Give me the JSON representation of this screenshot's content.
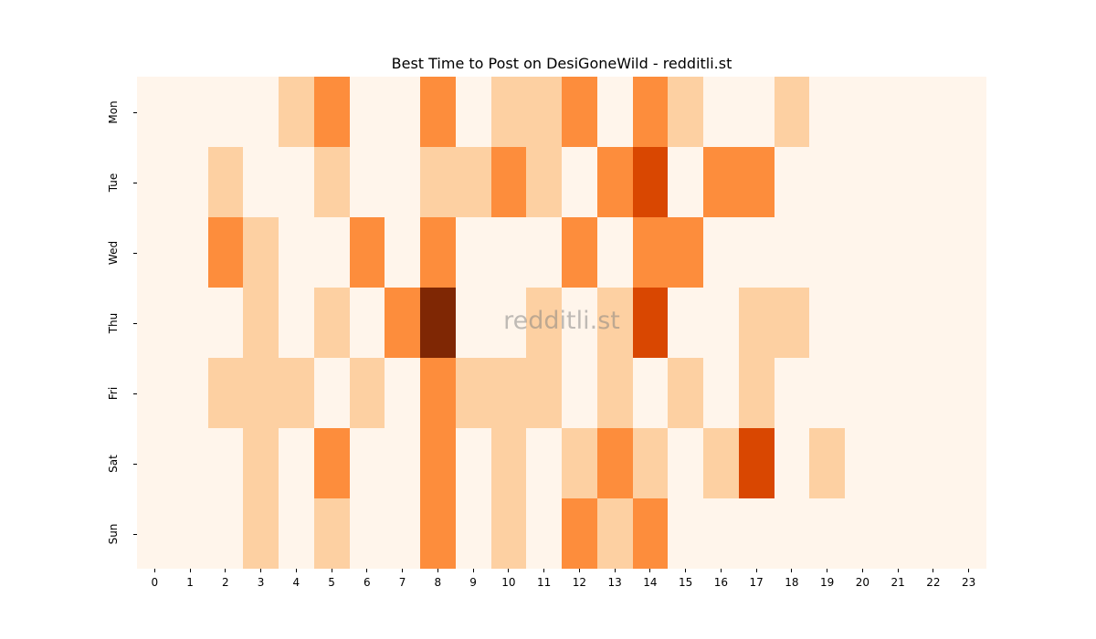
{
  "chart_data": {
    "type": "heatmap",
    "title": "Best Time to Post on DesiGoneWild - redditli.st",
    "xlabel": "",
    "ylabel": "",
    "x_categories": [
      "0",
      "1",
      "2",
      "3",
      "4",
      "5",
      "6",
      "7",
      "8",
      "9",
      "10",
      "11",
      "12",
      "13",
      "14",
      "15",
      "16",
      "17",
      "18",
      "19",
      "20",
      "21",
      "22",
      "23"
    ],
    "y_categories": [
      "Mon",
      "Tue",
      "Wed",
      "Thu",
      "Fri",
      "Sat",
      "Sun"
    ],
    "colormap": "Oranges",
    "colorbar": false,
    "grid": false,
    "level_colors": [
      "#fff5eb",
      "#fdd0a2",
      "#fd8d3c",
      "#d94701",
      "#7f2704"
    ],
    "values": [
      [
        0,
        0,
        0,
        0,
        1,
        2,
        0,
        0,
        2,
        0,
        1,
        1,
        2,
        0,
        2,
        1,
        0,
        0,
        1,
        0,
        0,
        0,
        0,
        0
      ],
      [
        0,
        0,
        1,
        0,
        0,
        1,
        0,
        0,
        1,
        1,
        2,
        1,
        0,
        2,
        3,
        0,
        2,
        2,
        0,
        0,
        0,
        0,
        0,
        0
      ],
      [
        0,
        0,
        2,
        1,
        0,
        0,
        2,
        0,
        2,
        0,
        0,
        0,
        2,
        0,
        2,
        2,
        0,
        0,
        0,
        0,
        0,
        0,
        0,
        0
      ],
      [
        0,
        0,
        0,
        1,
        0,
        1,
        0,
        2,
        4,
        0,
        0,
        1,
        0,
        1,
        3,
        0,
        0,
        1,
        1,
        0,
        0,
        0,
        0,
        0
      ],
      [
        0,
        0,
        1,
        1,
        1,
        0,
        1,
        0,
        2,
        1,
        1,
        1,
        0,
        1,
        0,
        1,
        0,
        1,
        0,
        0,
        0,
        0,
        0,
        0
      ],
      [
        0,
        0,
        0,
        1,
        0,
        2,
        0,
        0,
        2,
        0,
        1,
        0,
        1,
        2,
        1,
        0,
        1,
        3,
        0,
        1,
        0,
        0,
        0,
        0
      ],
      [
        0,
        0,
        0,
        1,
        0,
        1,
        0,
        0,
        2,
        0,
        1,
        0,
        2,
        1,
        2,
        0,
        0,
        0,
        0,
        0,
        0,
        0,
        0,
        0
      ]
    ],
    "watermark": "redditli.st"
  }
}
